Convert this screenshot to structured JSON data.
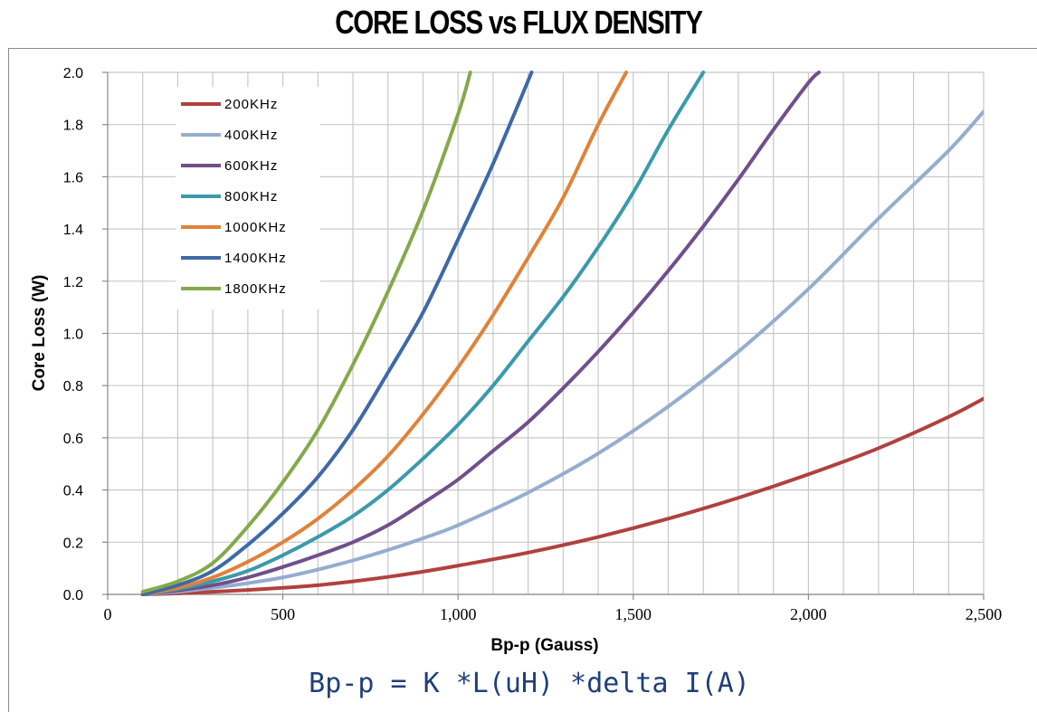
{
  "title": "CORE LOSS vs FLUX DENSITY",
  "formula": "Bp-p = K *L(uH) *delta I(A)",
  "chart_data": {
    "type": "line",
    "title": "CORE LOSS vs FLUX DENSITY",
    "xlabel": "Bp-p (Gauss)",
    "ylabel": "Core Loss (W)",
    "xlim": [
      0,
      2500
    ],
    "ylim": [
      0,
      2.0
    ],
    "x_ticks": [
      0,
      500,
      1000,
      1500,
      2000,
      2500
    ],
    "x_tick_labels": [
      "0",
      "500",
      "1,000",
      "1,500",
      "2,000",
      "2,500"
    ],
    "y_ticks": [
      0.0,
      0.2,
      0.4,
      0.6,
      0.8,
      1.0,
      1.2,
      1.4,
      1.6,
      1.8,
      2.0
    ],
    "y_tick_labels": [
      "0.0",
      "0.2",
      "0.4",
      "0.6",
      "0.8",
      "1.0",
      "1.2",
      "1.4",
      "1.6",
      "1.8",
      "2.0"
    ],
    "grid": true,
    "x_minor_step": 100,
    "legend_position": "top-left",
    "series": [
      {
        "name": "200KHz",
        "color": "#b0413e",
        "x": [
          100,
          200,
          300,
          400,
          500,
          600,
          700,
          800,
          900,
          1000,
          1200,
          1400,
          1600,
          1800,
          2000,
          2200,
          2400,
          2500
        ],
        "values": [
          0.0,
          0.004,
          0.01,
          0.017,
          0.025,
          0.035,
          0.05,
          0.067,
          0.087,
          0.11,
          0.16,
          0.22,
          0.29,
          0.37,
          0.46,
          0.56,
          0.68,
          0.75
        ]
      },
      {
        "name": "400KHz",
        "color": "#95adcf",
        "x": [
          100,
          200,
          300,
          400,
          500,
          600,
          700,
          800,
          900,
          1000,
          1200,
          1400,
          1600,
          1800,
          2000,
          2200,
          2400,
          2500
        ],
        "values": [
          0.0,
          0.01,
          0.025,
          0.043,
          0.065,
          0.095,
          0.13,
          0.17,
          0.215,
          0.265,
          0.39,
          0.54,
          0.72,
          0.93,
          1.17,
          1.44,
          1.7,
          1.85
        ]
      },
      {
        "name": "600KHz",
        "color": "#704f8c",
        "x": [
          100,
          200,
          300,
          400,
          500,
          600,
          700,
          800,
          900,
          1000,
          1100,
          1200,
          1300,
          1400,
          1500,
          1600,
          1700,
          1800,
          1900,
          2000,
          2030
        ],
        "values": [
          0.0,
          0.015,
          0.035,
          0.065,
          0.105,
          0.15,
          0.2,
          0.265,
          0.35,
          0.44,
          0.55,
          0.66,
          0.79,
          0.93,
          1.08,
          1.24,
          1.41,
          1.59,
          1.78,
          1.96,
          2.0
        ]
      },
      {
        "name": "800KHz",
        "color": "#3a9aab",
        "x": [
          100,
          200,
          300,
          400,
          500,
          600,
          700,
          800,
          900,
          1000,
          1100,
          1200,
          1300,
          1400,
          1500,
          1600,
          1700
        ],
        "values": [
          0.0,
          0.02,
          0.05,
          0.09,
          0.15,
          0.22,
          0.3,
          0.4,
          0.52,
          0.65,
          0.8,
          0.97,
          1.14,
          1.33,
          1.54,
          1.78,
          2.0
        ]
      },
      {
        "name": "1000KHz",
        "color": "#e0823a",
        "x": [
          100,
          200,
          300,
          400,
          500,
          600,
          700,
          800,
          900,
          1000,
          1100,
          1200,
          1300,
          1400,
          1480
        ],
        "values": [
          0.0,
          0.025,
          0.065,
          0.125,
          0.2,
          0.29,
          0.4,
          0.53,
          0.69,
          0.87,
          1.07,
          1.29,
          1.52,
          1.8,
          2.0
        ]
      },
      {
        "name": "1400KHz",
        "color": "#3e69a6",
        "x": [
          100,
          200,
          300,
          400,
          500,
          600,
          700,
          800,
          900,
          1000,
          1100,
          1210
        ],
        "values": [
          0.0,
          0.035,
          0.09,
          0.19,
          0.31,
          0.45,
          0.63,
          0.85,
          1.08,
          1.36,
          1.65,
          2.0
        ]
      },
      {
        "name": "1800KHz",
        "color": "#84a94b",
        "x": [
          100,
          200,
          300,
          400,
          500,
          600,
          700,
          800,
          900,
          1000,
          1035
        ],
        "values": [
          0.01,
          0.05,
          0.12,
          0.26,
          0.43,
          0.63,
          0.88,
          1.16,
          1.47,
          1.84,
          2.0
        ]
      }
    ]
  }
}
